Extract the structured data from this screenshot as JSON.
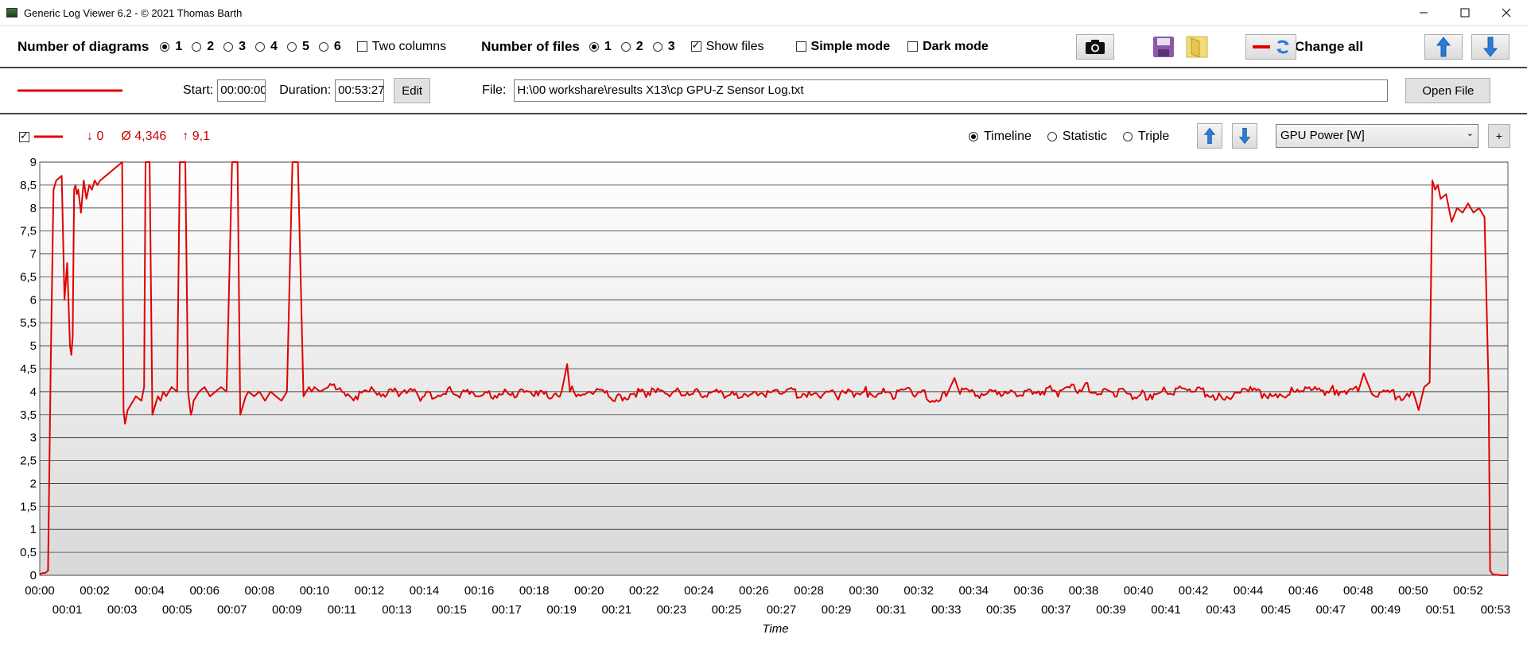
{
  "window": {
    "title": "Generic Log Viewer 6.2 - © 2021 Thomas Barth",
    "minimize": "—",
    "maximize": "☐",
    "close": "✕"
  },
  "toolbar": {
    "diagrams_label": "Number of diagrams",
    "diagram_options": [
      "1",
      "2",
      "3",
      "4",
      "5",
      "6"
    ],
    "diagram_selected": "1",
    "two_columns_label": "Two columns",
    "two_columns_checked": false,
    "files_label": "Number of files",
    "file_options": [
      "1",
      "2",
      "3"
    ],
    "file_selected": "1",
    "show_files_label": "Show files",
    "show_files_checked": true,
    "simple_mode_label": "Simple mode",
    "simple_mode_checked": false,
    "dark_mode_label": "Dark mode",
    "dark_mode_checked": false,
    "change_all_label": "Change all",
    "icons": [
      "camera-icon",
      "save-icon",
      "folder-icon",
      "line-color-refresh-icon",
      "arrow-up-icon",
      "arrow-down-icon"
    ]
  },
  "file_row": {
    "start_label": "Start:",
    "start_value": "00:00:00",
    "duration_label": "Duration:",
    "duration_value": "00:53:27",
    "edit_label": "Edit",
    "file_label": "File:",
    "file_path": "H:\\00 workshare\\results X13\\cp GPU-Z Sensor Log.txt",
    "open_file_label": "Open File",
    "line_color": "#e00000"
  },
  "diagram_header": {
    "visible_checked": true,
    "min_label": "↓ 0",
    "avg_label": "Ø 4,346",
    "max_label": "↑ 9,1",
    "mode_options": [
      "Timeline",
      "Statistic",
      "Triple"
    ],
    "mode_selected": "Timeline",
    "sensor_selected": "GPU Power [W]",
    "add_label": "+"
  },
  "colors": {
    "series": "#e00000",
    "stat_text": "#cc0000",
    "arrow_blue": "#2a7bd4"
  },
  "chart_data": {
    "type": "line",
    "xlabel": "Time",
    "ylabel": "",
    "ylim": [
      0,
      9
    ],
    "xlim_minutes": [
      0,
      53.45
    ],
    "y_ticks": [
      "0",
      "0,5",
      "1",
      "1,5",
      "2",
      "2,5",
      "3",
      "3,5",
      "4",
      "4,5",
      "5",
      "5,5",
      "6",
      "6,5",
      "7",
      "7,5",
      "8",
      "8,5",
      "9"
    ],
    "x_ticks_top": [
      "00:00",
      "00:02",
      "00:04",
      "00:06",
      "00:08",
      "00:10",
      "00:12",
      "00:14",
      "00:16",
      "00:18",
      "00:20",
      "00:22",
      "00:24",
      "00:26",
      "00:28",
      "00:30",
      "00:32",
      "00:34",
      "00:36",
      "00:38",
      "00:40",
      "00:42",
      "00:44",
      "00:46",
      "00:48",
      "00:50",
      "00:52"
    ],
    "x_ticks_bottom": [
      "00:01",
      "00:03",
      "00:05",
      "00:07",
      "00:09",
      "00:11",
      "00:13",
      "00:15",
      "00:17",
      "00:19",
      "00:21",
      "00:23",
      "00:25",
      "00:27",
      "00:29",
      "00:31",
      "00:33",
      "00:35",
      "00:37",
      "00:39",
      "00:41",
      "00:43",
      "00:45",
      "00:47",
      "00:49",
      "00:51",
      "00:53"
    ],
    "grid": true,
    "series": [
      {
        "name": "GPU Power [W]",
        "x": [
          0,
          0.1,
          0.2,
          0.3,
          0.4,
          0.5,
          0.6,
          0.8,
          0.9,
          1.0,
          1.1,
          1.15,
          1.2,
          1.25,
          1.3,
          1.35,
          1.4,
          1.5,
          1.6,
          1.7,
          1.8,
          1.9,
          2.0,
          2.1,
          2.2,
          2.4,
          2.6,
          2.8,
          3.0,
          3.05,
          3.1,
          3.2,
          3.3,
          3.5,
          3.7,
          3.8,
          3.85,
          3.9,
          4.0,
          4.1,
          4.2,
          4.3,
          4.4,
          4.5,
          4.6,
          4.8,
          5.0,
          5.1,
          5.2,
          5.3,
          5.4,
          5.5,
          5.55,
          5.6,
          5.7,
          5.8,
          6.0,
          6.2,
          6.4,
          6.6,
          6.8,
          7.0,
          7.2,
          7.3,
          7.4,
          7.5,
          7.6,
          7.8,
          8.0,
          8.2,
          8.4,
          8.6,
          8.8,
          9.0,
          9.2,
          9.4,
          9.6,
          9.7,
          9.8,
          9.9,
          10.0,
          10.2,
          10.5,
          11.0,
          11.5,
          12.0,
          13.0,
          14.0,
          15.0,
          16.0,
          17.0,
          18.0,
          19.0,
          19.2,
          19.3,
          20.0,
          21.0,
          22.0,
          23.0,
          24.0,
          25.0,
          26.0,
          27.0,
          28.0,
          29.0,
          30.0,
          31.0,
          32.0,
          32.5,
          33.0,
          33.3,
          33.5,
          34.0,
          35.0,
          36.0,
          37.0,
          38.0,
          39.0,
          40.0,
          41.0,
          42.0,
          43.0,
          44.0,
          45.0,
          46.0,
          47.0,
          48.0,
          48.2,
          48.5,
          49.0,
          49.5,
          50.0,
          50.2,
          50.4,
          50.6,
          50.7,
          50.8,
          50.9,
          51.0,
          51.2,
          51.4,
          51.6,
          51.8,
          52.0,
          52.2,
          52.4,
          52.6,
          52.75,
          52.8,
          52.9,
          53.2,
          53.45
        ],
        "y": [
          0.02,
          0.05,
          0.05,
          0.1,
          4.6,
          8.4,
          8.6,
          8.7,
          6.0,
          6.8,
          5.0,
          4.8,
          5.2,
          8.4,
          8.5,
          8.3,
          8.4,
          7.9,
          8.6,
          8.2,
          8.5,
          8.4,
          8.6,
          8.5,
          8.6,
          8.7,
          8.8,
          8.9,
          9.0,
          3.6,
          3.3,
          3.6,
          3.7,
          3.9,
          3.8,
          4.1,
          9.0,
          9.0,
          9.0,
          3.5,
          3.7,
          3.9,
          3.8,
          4.0,
          3.9,
          4.1,
          4.0,
          9.0,
          9.0,
          9.0,
          4.0,
          3.5,
          3.6,
          3.8,
          3.9,
          4.0,
          4.1,
          3.9,
          4.0,
          4.1,
          4.0,
          9.0,
          9.0,
          3.5,
          3.7,
          3.9,
          4.0,
          3.9,
          4.0,
          3.8,
          4.0,
          3.9,
          3.8,
          4.0,
          9.0,
          9.0,
          3.9,
          4.0,
          4.1,
          4.0,
          4.1,
          4.0,
          4.1,
          4.0,
          3.9,
          4.0,
          4.0,
          3.9,
          4.0,
          3.9,
          4.0,
          3.9,
          4.0,
          4.6,
          4.0,
          4.0,
          3.9,
          4.0,
          3.95,
          4.0,
          3.9,
          4.0,
          3.95,
          4.0,
          3.9,
          4.0,
          3.95,
          4.0,
          3.8,
          3.9,
          4.3,
          3.95,
          4.0,
          3.9,
          4.05,
          4.0,
          4.1,
          4.0,
          3.9,
          4.0,
          4.0,
          3.9,
          4.0,
          3.95,
          4.0,
          4.05,
          4.0,
          4.4,
          3.95,
          4.0,
          3.9,
          4.0,
          3.6,
          4.1,
          4.2,
          8.6,
          8.4,
          8.5,
          8.2,
          8.3,
          7.7,
          8.0,
          7.9,
          8.1,
          7.9,
          8.0,
          7.8,
          4.0,
          0.1,
          0.02,
          0.0,
          0.0
        ]
      }
    ]
  }
}
